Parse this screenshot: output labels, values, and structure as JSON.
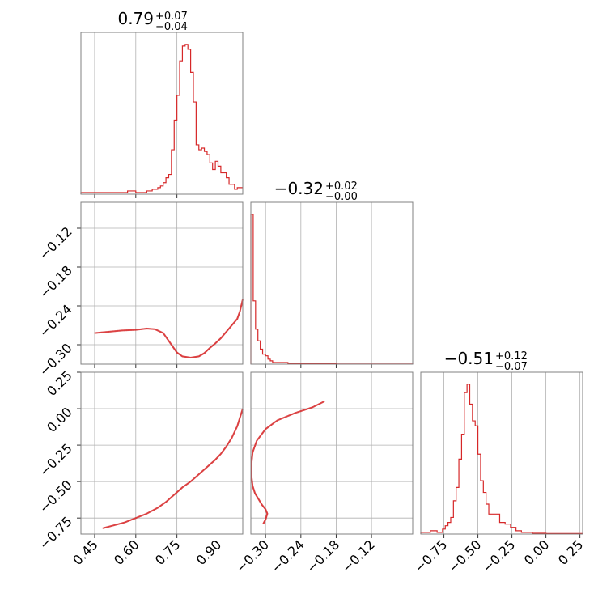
{
  "colors": {
    "series": "#d62728",
    "grid": "#b0b0b0",
    "frame": "#808080"
  },
  "chart_data": [
    {
      "type": "histogram",
      "panel": "param-0-marginal",
      "title": {
        "median": "0.79",
        "plus": "+0.07",
        "minus": "−0.04"
      },
      "xlim": [
        0.4,
        0.99
      ],
      "xticks": [
        0.45,
        0.6,
        0.75,
        0.9
      ],
      "bins": [
        [
          0.4,
          0.01
        ],
        [
          0.46,
          0.01
        ],
        [
          0.49,
          0.01
        ],
        [
          0.52,
          0.01
        ],
        [
          0.55,
          0.01
        ],
        [
          0.57,
          0.02
        ],
        [
          0.6,
          0.01
        ],
        [
          0.62,
          0.01
        ],
        [
          0.64,
          0.02
        ],
        [
          0.66,
          0.03
        ],
        [
          0.68,
          0.04
        ],
        [
          0.69,
          0.05
        ],
        [
          0.7,
          0.07
        ],
        [
          0.71,
          0.1
        ],
        [
          0.72,
          0.12
        ],
        [
          0.73,
          0.27
        ],
        [
          0.74,
          0.45
        ],
        [
          0.75,
          0.6
        ],
        [
          0.76,
          0.81
        ],
        [
          0.77,
          0.9
        ],
        [
          0.78,
          0.91
        ],
        [
          0.79,
          0.88
        ],
        [
          0.8,
          0.74
        ],
        [
          0.81,
          0.56
        ],
        [
          0.82,
          0.3
        ],
        [
          0.83,
          0.27
        ],
        [
          0.84,
          0.28
        ],
        [
          0.85,
          0.26
        ],
        [
          0.86,
          0.24
        ],
        [
          0.87,
          0.19
        ],
        [
          0.88,
          0.15
        ],
        [
          0.89,
          0.2
        ],
        [
          0.9,
          0.17
        ],
        [
          0.91,
          0.13
        ],
        [
          0.93,
          0.1
        ],
        [
          0.94,
          0.06
        ],
        [
          0.96,
          0.03
        ],
        [
          0.97,
          0.04
        ],
        [
          0.99,
          0.04
        ]
      ]
    },
    {
      "type": "histogram",
      "panel": "param-1-marginal",
      "title": {
        "median": "−0.32",
        "plus": "+0.02",
        "minus": "−0.00"
      },
      "xlim": [
        -0.325,
        -0.05
      ],
      "xticks": [
        -0.3,
        -0.24,
        -0.18,
        -0.12
      ],
      "bins": [
        [
          -0.325,
          0.9
        ],
        [
          -0.321,
          0.38
        ],
        [
          -0.317,
          0.21
        ],
        [
          -0.313,
          0.14
        ],
        [
          -0.309,
          0.09
        ],
        [
          -0.305,
          0.06
        ],
        [
          -0.3,
          0.05
        ],
        [
          -0.296,
          0.03
        ],
        [
          -0.292,
          0.02
        ],
        [
          -0.288,
          0.01
        ],
        [
          -0.284,
          0.01
        ],
        [
          -0.278,
          0.01
        ],
        [
          -0.27,
          0.01
        ],
        [
          -0.262,
          0.005
        ],
        [
          -0.25,
          0.003
        ],
        [
          -0.22,
          0.002
        ],
        [
          -0.18,
          0.001
        ],
        [
          -0.12,
          0.001
        ],
        [
          -0.05,
          0.0
        ]
      ]
    },
    {
      "type": "histogram",
      "panel": "param-2-marginal",
      "title": {
        "median": "−0.51",
        "plus": "+0.12",
        "minus": "−0.07"
      },
      "xlim": [
        -0.92,
        0.27
      ],
      "xticks": [
        -0.75,
        -0.5,
        -0.25,
        0.0,
        0.25
      ],
      "bins": [
        [
          -0.92,
          0.01
        ],
        [
          -0.85,
          0.02
        ],
        [
          -0.8,
          0.01
        ],
        [
          -0.76,
          0.03
        ],
        [
          -0.74,
          0.05
        ],
        [
          -0.72,
          0.07
        ],
        [
          -0.7,
          0.1
        ],
        [
          -0.68,
          0.2
        ],
        [
          -0.66,
          0.28
        ],
        [
          -0.64,
          0.45
        ],
        [
          -0.62,
          0.6
        ],
        [
          -0.6,
          0.85
        ],
        [
          -0.58,
          0.9
        ],
        [
          -0.56,
          0.78
        ],
        [
          -0.54,
          0.68
        ],
        [
          -0.52,
          0.65
        ],
        [
          -0.5,
          0.48
        ],
        [
          -0.48,
          0.32
        ],
        [
          -0.46,
          0.25
        ],
        [
          -0.44,
          0.18
        ],
        [
          -0.42,
          0.12
        ],
        [
          -0.38,
          0.12
        ],
        [
          -0.34,
          0.07
        ],
        [
          -0.3,
          0.06
        ],
        [
          -0.26,
          0.04
        ],
        [
          -0.22,
          0.02
        ],
        [
          -0.18,
          0.01
        ],
        [
          -0.14,
          0.01
        ],
        [
          -0.1,
          0.005
        ],
        [
          0.0,
          0.003
        ],
        [
          0.27,
          0.0
        ]
      ]
    },
    {
      "type": "scatter",
      "panel": "param-0-vs-param-1",
      "xlim": [
        0.4,
        0.99
      ],
      "ylim": [
        -0.33,
        -0.08
      ],
      "xticks": [
        0.45,
        0.6,
        0.75,
        0.9
      ],
      "yticks": [
        -0.12,
        -0.18,
        -0.24,
        -0.3
      ],
      "points": [
        [
          0.45,
          -0.282
        ],
        [
          0.5,
          -0.28
        ],
        [
          0.55,
          -0.278
        ],
        [
          0.6,
          -0.277
        ],
        [
          0.64,
          -0.275
        ],
        [
          0.67,
          -0.276
        ],
        [
          0.7,
          -0.282
        ],
        [
          0.73,
          -0.3
        ],
        [
          0.75,
          -0.312
        ],
        [
          0.77,
          -0.318
        ],
        [
          0.8,
          -0.32
        ],
        [
          0.83,
          -0.318
        ],
        [
          0.85,
          -0.313
        ],
        [
          0.87,
          -0.305
        ],
        [
          0.89,
          -0.298
        ],
        [
          0.91,
          -0.29
        ],
        [
          0.93,
          -0.28
        ],
        [
          0.95,
          -0.27
        ],
        [
          0.97,
          -0.26
        ],
        [
          0.98,
          -0.248
        ],
        [
          0.99,
          -0.23
        ]
      ]
    },
    {
      "type": "scatter",
      "panel": "param-0-vs-param-2",
      "xlim": [
        0.4,
        0.99
      ],
      "ylim": [
        -0.86,
        0.25
      ],
      "xticks": [
        0.45,
        0.6,
        0.75,
        0.9
      ],
      "yticks": [
        0.25,
        0.0,
        -0.25,
        -0.5,
        -0.75
      ],
      "points": [
        [
          0.48,
          -0.82
        ],
        [
          0.52,
          -0.8
        ],
        [
          0.56,
          -0.78
        ],
        [
          0.6,
          -0.75
        ],
        [
          0.64,
          -0.72
        ],
        [
          0.68,
          -0.68
        ],
        [
          0.71,
          -0.64
        ],
        [
          0.74,
          -0.59
        ],
        [
          0.77,
          -0.54
        ],
        [
          0.8,
          -0.5
        ],
        [
          0.83,
          -0.45
        ],
        [
          0.86,
          -0.4
        ],
        [
          0.89,
          -0.35
        ],
        [
          0.91,
          -0.31
        ],
        [
          0.93,
          -0.26
        ],
        [
          0.95,
          -0.2
        ],
        [
          0.97,
          -0.12
        ],
        [
          0.98,
          -0.06
        ],
        [
          0.99,
          0.0
        ]
      ]
    },
    {
      "type": "scatter",
      "panel": "param-1-vs-param-2",
      "xlim": [
        -0.325,
        -0.05
      ],
      "ylim": [
        -0.86,
        0.25
      ],
      "xticks": [
        -0.3,
        -0.24,
        -0.18,
        -0.12
      ],
      "yticks": [
        0.25,
        0.0,
        -0.25,
        -0.5,
        -0.75
      ],
      "points": [
        [
          -0.2,
          0.05
        ],
        [
          -0.22,
          0.01
        ],
        [
          -0.25,
          -0.03
        ],
        [
          -0.28,
          -0.08
        ],
        [
          -0.3,
          -0.14
        ],
        [
          -0.315,
          -0.22
        ],
        [
          -0.322,
          -0.3
        ],
        [
          -0.324,
          -0.38
        ],
        [
          -0.324,
          -0.46
        ],
        [
          -0.322,
          -0.53
        ],
        [
          -0.318,
          -0.58
        ],
        [
          -0.312,
          -0.62
        ],
        [
          -0.306,
          -0.66
        ],
        [
          -0.3,
          -0.69
        ],
        [
          -0.297,
          -0.72
        ],
        [
          -0.3,
          -0.76
        ],
        [
          -0.304,
          -0.79
        ]
      ]
    }
  ]
}
